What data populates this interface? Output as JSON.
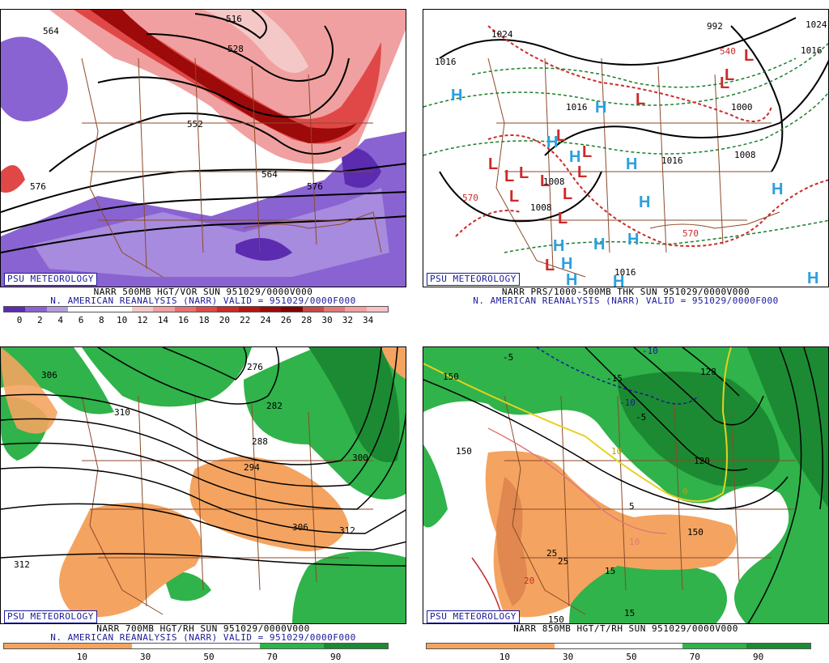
{
  "colors": {
    "orange": "#f4a460",
    "green": "#2fb34a",
    "darkgreen": "#1c8a32",
    "purple": "#8a63d2",
    "red": "#cc2a2a",
    "blue": "#2aa0e0",
    "navy": "#1a1a9a",
    "brown": "#8b4a2a"
  },
  "panels": [
    {
      "id": "vort",
      "credit": "PSU METEOROLOGY",
      "header1": "NARR 500MB HGT/VOR SUN 951029/0000V000",
      "header2": "N. AMERICAN REANALYSIS (NARR) VALID = 951029/0000F000",
      "colorbar_colors": [
        "#5b2bb0",
        "#8a63d2",
        "#b49ce2",
        "#ffffff",
        "#ffffff",
        "#ffffff",
        "#f5c8c8",
        "#f0a0a0",
        "#e87070",
        "#e04848",
        "#d02828",
        "#b81414",
        "#9c0a0a",
        "#800000",
        "#c84848",
        "#e07878",
        "#f4a0a0",
        "#f8c0c8"
      ],
      "colorbar_labels": [
        "0",
        "2",
        "4",
        "6",
        "8",
        "10",
        "12",
        "14",
        "16",
        "18",
        "20",
        "22",
        "24",
        "26",
        "28",
        "30",
        "32",
        "34"
      ],
      "map_labels": [
        "564",
        "516",
        "528",
        "552",
        "564",
        "576",
        "576"
      ]
    },
    {
      "id": "thk",
      "credit": "PSU METEOROLOGY",
      "header1": "NARR PRS/1000-500MB THK SUN 951029/0000V000",
      "header2": "N. AMERICAN REANALYSIS (NARR) VALID = 951029/0000F000",
      "map_labels": [
        "1016",
        "1024",
        "992",
        "1016",
        "1024",
        "570",
        "540",
        "1000",
        "1016",
        "1008",
        "1008",
        "1016",
        "1008",
        "1016",
        "570"
      ]
    },
    {
      "id": "rh700",
      "credit": "PSU METEOROLOGY",
      "header1": "NARR 700MB HGT/RH SUN 951029/0000V000",
      "header2": "N. AMERICAN REANALYSIS (NARR) VALID = 951029/0000F000",
      "colorbar_colors": [
        "#f4a460",
        "#f4a460",
        "#ffffff",
        "#ffffff",
        "#2fb34a",
        "#1c8a32"
      ],
      "colorbar_labels": [
        "10",
        "30",
        "50",
        "70",
        "90"
      ],
      "map_labels": [
        "306",
        "310",
        "276",
        "282",
        "288",
        "294",
        "300",
        "306",
        "312",
        "312"
      ]
    },
    {
      "id": "t850",
      "credit": "PSU METEOROLOGY",
      "header1": "NARR 850MB HGT/T/RH SUN 951029/0000V000",
      "header2": "",
      "colorbar_colors": [
        "#f4a460",
        "#f4a460",
        "#ffffff",
        "#ffffff",
        "#2fb34a",
        "#1c8a32"
      ],
      "colorbar_labels": [
        "10",
        "30",
        "50",
        "70",
        "90"
      ],
      "map_labels": [
        "150",
        "150",
        "-5",
        "-10",
        "-15",
        "-10",
        "-5",
        "128",
        "120",
        "10",
        "0",
        "5",
        "10",
        "150",
        "25",
        "25",
        "20",
        "15",
        "15",
        "150"
      ]
    }
  ]
}
